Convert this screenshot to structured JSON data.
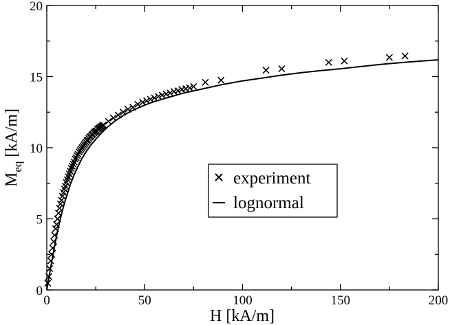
{
  "chart_data": {
    "type": "scatter",
    "xlabel": "H [kA/m]",
    "ylabel_main": "M",
    "ylabel_sub": "eq",
    "ylabel_rest": " [kA/m]",
    "xlim": [
      0,
      200
    ],
    "ylim": [
      0,
      20
    ],
    "xticks": [
      0,
      50,
      100,
      150,
      200
    ],
    "yticks": [
      0,
      5,
      10,
      15,
      20
    ],
    "grid": false,
    "legend_position": "center-right",
    "series": [
      {
        "name": "experiment",
        "kind": "markers",
        "marker": "x",
        "x": [
          0.5,
          1.0,
          1.5,
          2.0,
          2.5,
          3.0,
          3.5,
          4.0,
          4.5,
          5.0,
          5.5,
          6.0,
          6.5,
          7.0,
          7.5,
          8.0,
          8.5,
          9.0,
          9.5,
          10.0,
          10.5,
          11.0,
          11.5,
          12.0,
          12.5,
          13.0,
          13.5,
          14.0,
          14.5,
          15.0,
          15.5,
          16.0,
          16.5,
          17.0,
          17.5,
          18.0,
          18.5,
          19.0,
          19.5,
          20.0,
          20.5,
          21.0,
          21.5,
          22.0,
          22.5,
          23.0,
          23.5,
          24.0,
          24.5,
          25.0,
          25.5,
          26.0,
          26.5,
          27.0,
          27.5,
          28.0,
          28.5,
          29.0,
          31.5,
          34.0,
          36.5,
          39.0,
          41.5,
          44.0,
          46.5,
          49.0,
          51.0,
          53.0,
          55.0,
          57.0,
          59.0,
          61.0,
          63.0,
          65.0,
          67.0,
          69.0,
          71.0,
          73.0,
          75.0,
          81.0,
          89.0,
          112.0,
          120.0,
          144.0,
          152.0,
          175.0,
          183.0
        ],
        "y": [
          0.48,
          0.95,
          1.5,
          2.05,
          2.5,
          2.95,
          3.4,
          3.85,
          4.3,
          4.6,
          5.0,
          5.4,
          5.75,
          6.05,
          6.3,
          6.6,
          6.85,
          7.1,
          7.3,
          7.55,
          7.75,
          7.95,
          8.15,
          8.35,
          8.55,
          8.7,
          8.85,
          9.0,
          9.2,
          9.3,
          9.45,
          9.55,
          9.7,
          9.8,
          9.9,
          10.0,
          10.1,
          10.2,
          10.3,
          10.4,
          10.5,
          10.55,
          10.65,
          10.75,
          10.8,
          10.9,
          10.95,
          11.05,
          11.1,
          11.15,
          11.2,
          11.3,
          11.35,
          11.4,
          11.45,
          11.5,
          11.55,
          11.6,
          11.85,
          12.1,
          12.3,
          12.5,
          12.7,
          12.85,
          13.05,
          13.2,
          13.3,
          13.4,
          13.5,
          13.6,
          13.7,
          13.78,
          13.85,
          13.95,
          14.0,
          14.1,
          14.15,
          14.2,
          14.3,
          14.6,
          14.75,
          15.45,
          15.55,
          16.0,
          16.1,
          16.35,
          16.45
        ]
      },
      {
        "name": "lognormal",
        "kind": "line",
        "x": [
          0,
          1,
          2,
          3,
          4,
          5,
          6,
          7,
          8,
          9,
          10,
          12,
          14,
          16,
          18,
          20,
          22,
          25,
          28,
          31,
          35,
          40,
          45,
          50,
          55,
          60,
          70,
          80,
          90,
          100,
          110,
          120,
          130,
          140,
          150,
          160,
          170,
          180,
          190,
          200
        ],
        "y": [
          0,
          0.8,
          1.6,
          2.35,
          3.1,
          3.8,
          4.45,
          5.05,
          5.6,
          6.1,
          6.55,
          7.4,
          8.1,
          8.7,
          9.25,
          9.7,
          10.1,
          10.6,
          11.05,
          11.45,
          11.9,
          12.35,
          12.7,
          13.0,
          13.25,
          13.45,
          13.85,
          14.15,
          14.45,
          14.7,
          14.9,
          15.1,
          15.28,
          15.42,
          15.55,
          15.7,
          15.85,
          15.97,
          16.08,
          16.18
        ]
      }
    ]
  }
}
